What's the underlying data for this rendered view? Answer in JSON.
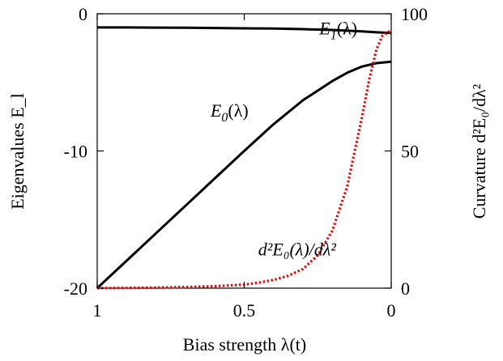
{
  "chart_data": {
    "type": "line",
    "xlabel": "Bias strength  λ(t)",
    "ylabel_left": "Eigenvalues  E_l",
    "ylabel_right": "Curvature  d²E₀/dλ²",
    "x_reversed": true,
    "xlim": [
      1,
      0
    ],
    "ylim_left": [
      -20,
      0
    ],
    "ylim_right": [
      0,
      100
    ],
    "x_ticks": [
      1,
      0.5,
      0
    ],
    "x_tick_labels": [
      "1",
      "0.5",
      "0"
    ],
    "y_left_ticks": [
      -20,
      -10,
      0
    ],
    "y_left_tick_labels": [
      "-20",
      "-10",
      "0"
    ],
    "y_right_ticks": [
      0,
      50,
      100
    ],
    "y_right_tick_labels": [
      "0",
      "50",
      "100"
    ],
    "grid": false,
    "series": [
      {
        "name": "E_1(λ)",
        "axis": "left",
        "style": "solid",
        "color": "#000000",
        "x": [
          1.0,
          0.9,
          0.8,
          0.7,
          0.6,
          0.5,
          0.4,
          0.3,
          0.2,
          0.1,
          0.05,
          0.0
        ],
        "y": [
          -1.0,
          -1.0,
          -1.01,
          -1.02,
          -1.04,
          -1.06,
          -1.08,
          -1.12,
          -1.18,
          -1.28,
          -1.35,
          -1.4
        ]
      },
      {
        "name": "E_0(λ)",
        "axis": "left",
        "style": "solid",
        "color": "#000000",
        "x": [
          1.0,
          0.9,
          0.8,
          0.7,
          0.6,
          0.5,
          0.4,
          0.3,
          0.2,
          0.15,
          0.1,
          0.05,
          0.0
        ],
        "y": [
          -20.0,
          -18.0,
          -16.0,
          -14.0,
          -12.0,
          -10.0,
          -8.05,
          -6.3,
          -4.9,
          -4.3,
          -3.85,
          -3.6,
          -3.5
        ]
      },
      {
        "name": "d²E₀(λ)/dλ²",
        "axis": "right",
        "style": "dotted",
        "color": "#dd1111",
        "x": [
          1.0,
          0.9,
          0.8,
          0.7,
          0.6,
          0.5,
          0.45,
          0.4,
          0.35,
          0.3,
          0.25,
          0.2,
          0.15,
          0.1,
          0.075,
          0.05,
          0.03,
          0.0
        ],
        "y": [
          0,
          0.1,
          0.2,
          0.4,
          0.7,
          1.3,
          2,
          3,
          4.5,
          7,
          12,
          21,
          37,
          62,
          76,
          87,
          92,
          94
        ]
      }
    ],
    "annotations": [
      {
        "base": "E",
        "sub": "1",
        "tail": "(λ)",
        "pos_x": 0.18,
        "pos_y": -1.5
      },
      {
        "base": "E",
        "sub": "0",
        "tail": "(λ)",
        "pos_x": 0.55,
        "pos_y": -7.5
      },
      {
        "base": "d²E₀(λ)/dλ²",
        "sub": "",
        "tail": "",
        "pos_x": 0.32,
        "pos_y": -17.6
      }
    ]
  }
}
